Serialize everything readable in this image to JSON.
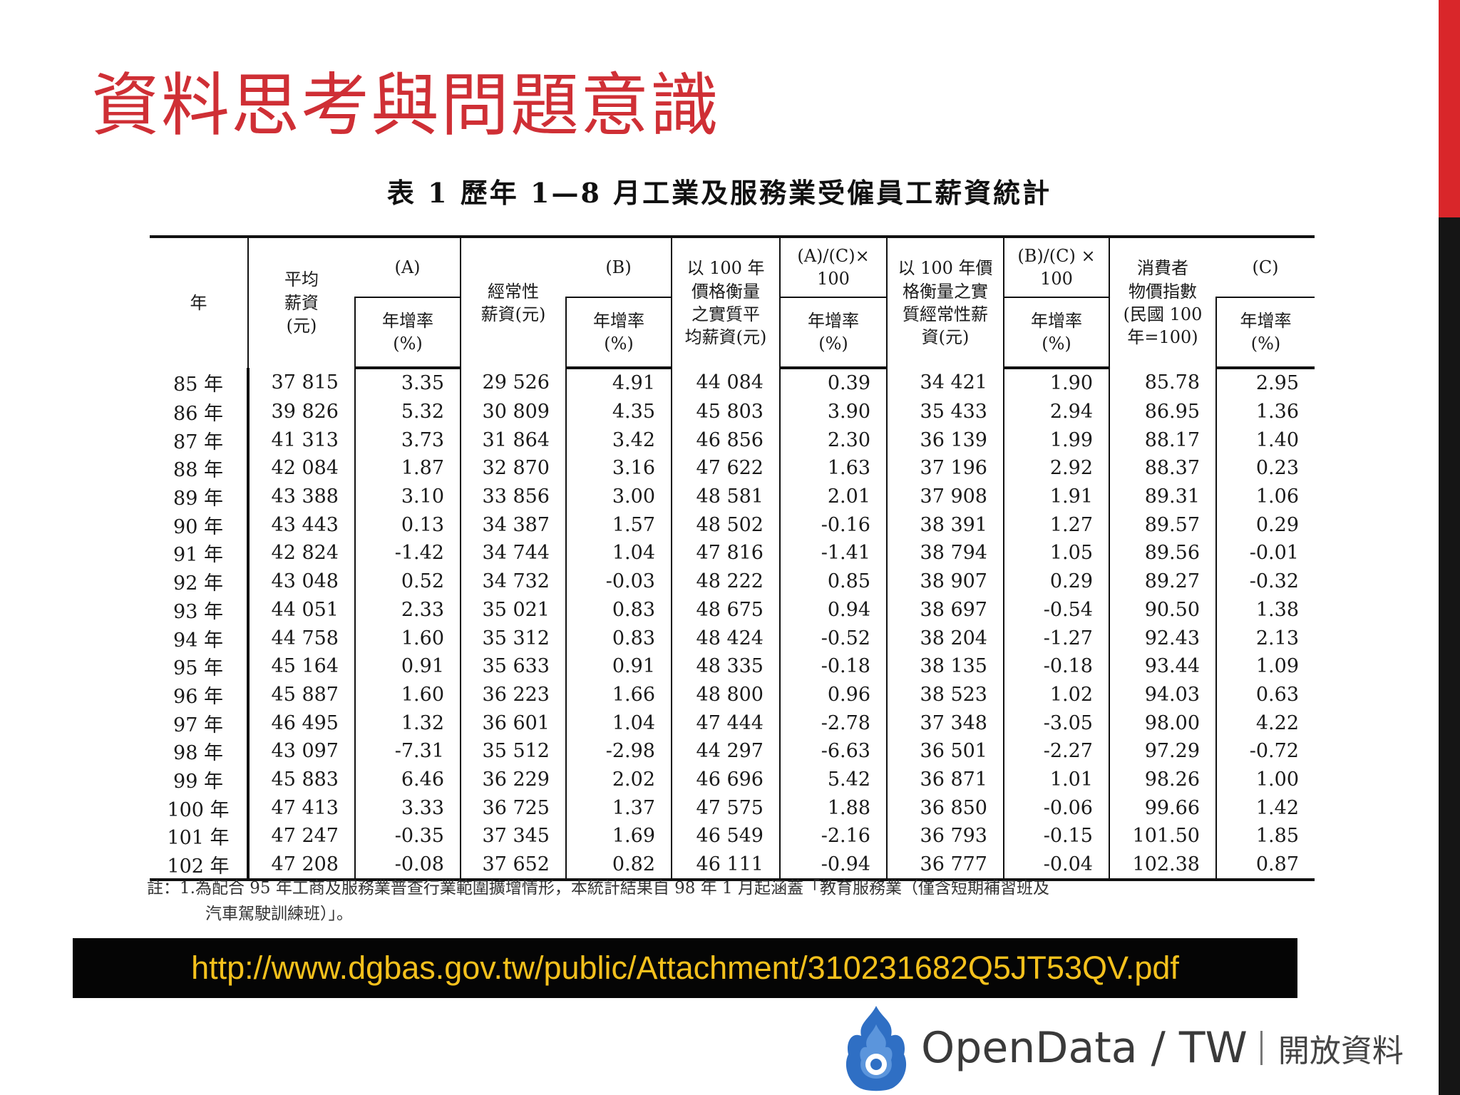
{
  "slide": {
    "title": "資料思考與問題意識"
  },
  "table": {
    "caption": "表 1 歷年 1—8 月工業及服務業受僱員工薪資統計",
    "headers": {
      "year": "年",
      "avg_wage": "平均\n薪資\n(元)",
      "mark_a": "(A)",
      "regular_wage": "經常性\n薪資(元)",
      "mark_b": "(B)",
      "real_avg": "以 100 年\n價格衡量\n之實質平\n均薪資(元)",
      "mark_ac": "(A)/(C)×\n100",
      "real_regular": "以 100 年價\n格衡量之實\n質經常性薪\n資(元)",
      "mark_bc": "(B)/(C) ×\n100",
      "cpi": "消費者\n物價指數\n(民國 100\n年=100)",
      "mark_c": "(C)",
      "growth": "年增率\n(%)"
    },
    "rows": [
      [
        "85 年",
        "37 815",
        "3.35",
        "29 526",
        "4.91",
        "44 084",
        "0.39",
        "34 421",
        "1.90",
        "85.78",
        "2.95"
      ],
      [
        "86 年",
        "39 826",
        "5.32",
        "30 809",
        "4.35",
        "45 803",
        "3.90",
        "35 433",
        "2.94",
        "86.95",
        "1.36"
      ],
      [
        "87 年",
        "41 313",
        "3.73",
        "31 864",
        "3.42",
        "46 856",
        "2.30",
        "36 139",
        "1.99",
        "88.17",
        "1.40"
      ],
      [
        "88 年",
        "42 084",
        "1.87",
        "32 870",
        "3.16",
        "47 622",
        "1.63",
        "37 196",
        "2.92",
        "88.37",
        "0.23"
      ],
      [
        "89 年",
        "43 388",
        "3.10",
        "33 856",
        "3.00",
        "48 581",
        "2.01",
        "37 908",
        "1.91",
        "89.31",
        "1.06"
      ],
      [
        "90 年",
        "43 443",
        "0.13",
        "34 387",
        "1.57",
        "48 502",
        "-0.16",
        "38 391",
        "1.27",
        "89.57",
        "0.29"
      ],
      [
        "91 年",
        "42 824",
        "-1.42",
        "34 744",
        "1.04",
        "47 816",
        "-1.41",
        "38 794",
        "1.05",
        "89.56",
        "-0.01"
      ],
      [
        "92 年",
        "43 048",
        "0.52",
        "34 732",
        "-0.03",
        "48 222",
        "0.85",
        "38 907",
        "0.29",
        "89.27",
        "-0.32"
      ],
      [
        "93 年",
        "44 051",
        "2.33",
        "35 021",
        "0.83",
        "48 675",
        "0.94",
        "38 697",
        "-0.54",
        "90.50",
        "1.38"
      ],
      [
        "94 年",
        "44 758",
        "1.60",
        "35 312",
        "0.83",
        "48 424",
        "-0.52",
        "38 204",
        "-1.27",
        "92.43",
        "2.13"
      ],
      [
        "95 年",
        "45 164",
        "0.91",
        "35 633",
        "0.91",
        "48 335",
        "-0.18",
        "38 135",
        "-0.18",
        "93.44",
        "1.09"
      ],
      [
        "96 年",
        "45 887",
        "1.60",
        "36 223",
        "1.66",
        "48 800",
        "0.96",
        "38 523",
        "1.02",
        "94.03",
        "0.63"
      ],
      [
        "97 年",
        "46 495",
        "1.32",
        "36 601",
        "1.04",
        "47 444",
        "-2.78",
        "37 348",
        "-3.05",
        "98.00",
        "4.22"
      ],
      [
        "98 年",
        "43 097",
        "-7.31",
        "35 512",
        "-2.98",
        "44 297",
        "-6.63",
        "36 501",
        "-2.27",
        "97.29",
        "-0.72"
      ],
      [
        "99 年",
        "45 883",
        "6.46",
        "36 229",
        "2.02",
        "46 696",
        "5.42",
        "36 871",
        "1.01",
        "98.26",
        "1.00"
      ],
      [
        "100 年",
        "47 413",
        "3.33",
        "36 725",
        "1.37",
        "47 575",
        "1.88",
        "36 850",
        "-0.06",
        "99.66",
        "1.42"
      ],
      [
        "101 年",
        "47 247",
        "-0.35",
        "37 345",
        "1.69",
        "46 549",
        "-2.16",
        "36 793",
        "-0.15",
        "101.50",
        "1.85"
      ],
      [
        "102 年",
        "47 208",
        "-0.08",
        "37 652",
        "0.82",
        "46 111",
        "-0.94",
        "36 777",
        "-0.04",
        "102.38",
        "0.87"
      ]
    ],
    "note_line1": "註：1.為配合 95 年工商及服務業普查行業範圍擴增情形，本統計結果自 98 年 1 月起涵蓋「教育服務業（僅含短期補習班及",
    "note_line2": "汽車駕駛訓練班）」。"
  },
  "banner": {
    "url": "http://www.dgbas.gov.tw/public/Attachment/310231682Q5JT53QV.pdf"
  },
  "logo": {
    "name": "OpenData / TW",
    "subtitle": "開放資料",
    "icon": "opendata-flame-logo",
    "color": "#2f6fc4"
  },
  "colors": {
    "title": "#cf2f35",
    "right_bar_top": "#d9262a",
    "right_bar_bottom": "#151515",
    "banner_bg": "#050505",
    "banner_text": "#f5c11c"
  }
}
